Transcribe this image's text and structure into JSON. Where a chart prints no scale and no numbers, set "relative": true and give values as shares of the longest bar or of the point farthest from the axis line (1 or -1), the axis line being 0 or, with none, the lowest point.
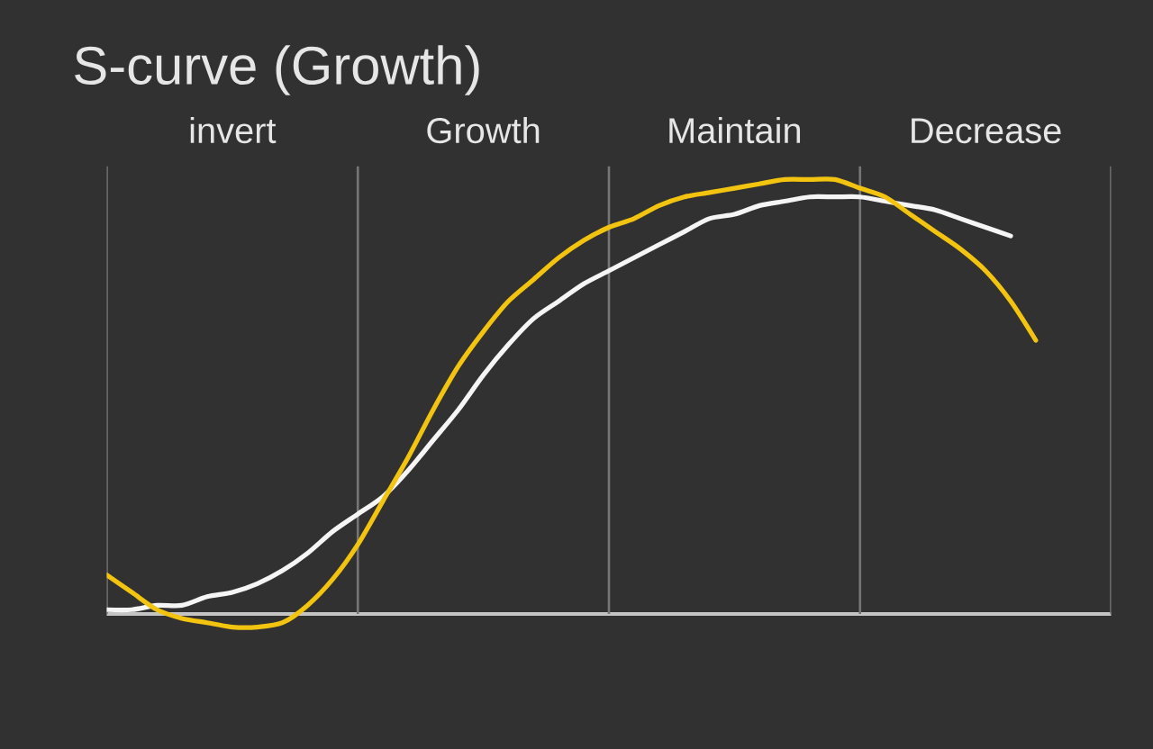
{
  "chart_data": {
    "type": "line",
    "title": "S-curve (Growth)",
    "relative": true,
    "grid": "x",
    "categories": [
      null,
      null,
      null,
      null,
      null,
      "invert",
      null,
      null,
      null,
      null,
      null,
      null,
      null,
      null,
      null,
      "Growth",
      null,
      null,
      null,
      null,
      null,
      null,
      null,
      null,
      null,
      "Maintain",
      null,
      null,
      null,
      null,
      null,
      null,
      null,
      null,
      null,
      "Decrease",
      null,
      null,
      null,
      null,
      null
    ],
    "series": [
      {
        "color": "#f5f5f5",
        "values": [
          0.01,
          0.01,
          0.02,
          0.02,
          0.04,
          0.05,
          0.07,
          0.1,
          0.14,
          0.19,
          0.23,
          0.27,
          0.33,
          0.4,
          0.47,
          0.55,
          0.62,
          0.68,
          0.72,
          0.76,
          0.79,
          0.82,
          0.85,
          0.88,
          0.91,
          0.92,
          0.94,
          0.95,
          0.96,
          0.96,
          0.96,
          0.95,
          0.94,
          0.93,
          0.91,
          0.89,
          0.87,
          null,
          null,
          null,
          null
        ]
      },
      {
        "color": "#f2c40f",
        "values": [
          0.09,
          0.05,
          0.01,
          -0.01,
          -0.02,
          -0.03,
          -0.03,
          -0.02,
          0.02,
          0.08,
          0.16,
          0.26,
          0.36,
          0.47,
          0.57,
          0.65,
          0.72,
          0.77,
          0.82,
          0.86,
          0.89,
          0.91,
          0.94,
          0.96,
          0.97,
          0.98,
          0.99,
          1.0,
          1.0,
          1.0,
          0.98,
          0.96,
          0.92,
          0.88,
          0.84,
          0.79,
          0.72,
          0.63,
          null,
          null,
          null
        ]
      }
    ]
  }
}
